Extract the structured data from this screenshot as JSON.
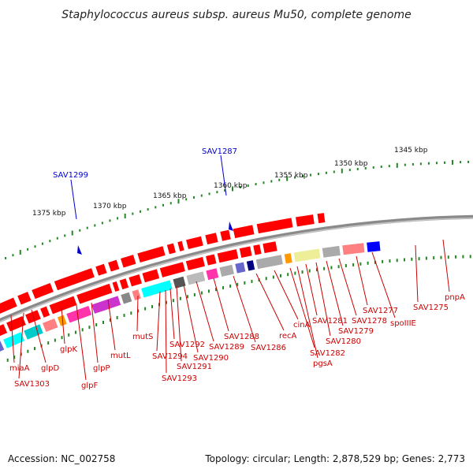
{
  "title": "Staphylococcus aureus subsp. aureus Mu50, complete genome",
  "footer": {
    "accession": "Accession: NC_002758",
    "topology": "Topology: circular; Length: 2,878,529 bp; Genes: 2,773"
  },
  "kbp_labels": [
    "1375 kbp",
    "1370 kbp",
    "1365 kbp",
    "1360 kbp",
    "1355 kbp",
    "1350 kbp",
    "1345 kbp"
  ],
  "highlight_labels": [
    "SAV1299",
    "SAV1287"
  ],
  "gene_labels": [
    "miaA",
    "SAV1303",
    "glpD",
    "glpK",
    "glpF",
    "glpP",
    "mutL",
    "mutS",
    "SAV1294",
    "SAV1293",
    "SAV1292",
    "SAV1291",
    "SAV1290",
    "SAV1289",
    "SAV1288",
    "SAV1286",
    "recA",
    "cinA",
    "SAV1282",
    "pgsA",
    "SAV1281",
    "SAV1280",
    "SAV1279",
    "SAV1278",
    "SAV1277",
    "spoIIIE",
    "SAV1275",
    "pnpA"
  ],
  "colors": {
    "gene": "#ff0000",
    "label": "#cc0000",
    "highlight": "#0000cc",
    "tick": "#228822",
    "backbone": "#888888"
  }
}
